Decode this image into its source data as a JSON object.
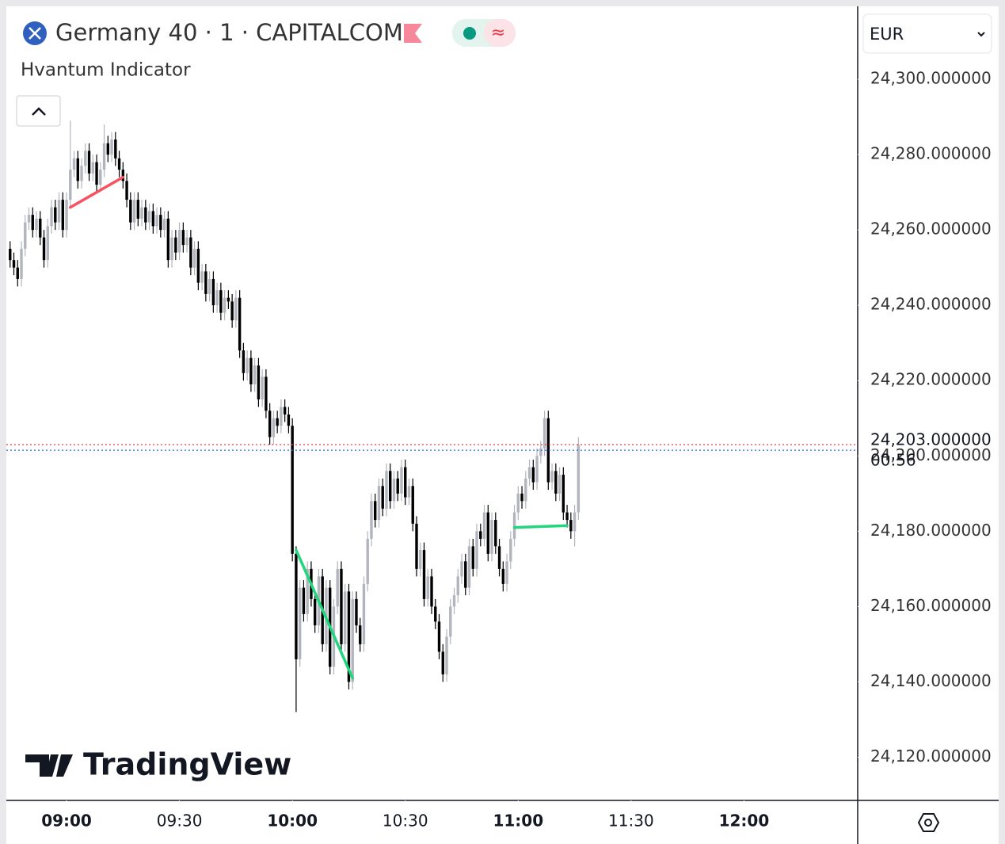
{
  "chart_data": {
    "type": "candlestick",
    "title": "Germany 40 · 1 · CAPITALCOM",
    "indicator": "Hvantum Indicator",
    "currency": "EUR",
    "watermark": "TradingView",
    "up_color": "#b2b5be",
    "down_color": "#000000",
    "x": [
      "08:45",
      "08:46",
      "08:47",
      "08:48",
      "08:49",
      "08:50",
      "08:51",
      "08:52",
      "08:53",
      "08:54",
      "08:55",
      "08:56",
      "08:57",
      "08:58",
      "08:59",
      "09:00",
      "09:01",
      "09:02",
      "09:03",
      "09:04",
      "09:05",
      "09:06",
      "09:07",
      "09:08",
      "09:09",
      "09:10",
      "09:11",
      "09:12",
      "09:13",
      "09:14",
      "09:15",
      "09:16",
      "09:17",
      "09:18",
      "09:19",
      "09:20",
      "09:21",
      "09:22",
      "09:23",
      "09:24",
      "09:25",
      "09:26",
      "09:27",
      "09:28",
      "09:29",
      "09:30",
      "09:31",
      "09:32",
      "09:33",
      "09:34",
      "09:35",
      "09:36",
      "09:37",
      "09:38",
      "09:39",
      "09:40",
      "09:41",
      "09:42",
      "09:43",
      "09:44",
      "09:45",
      "09:46",
      "09:47",
      "09:48",
      "09:49",
      "09:50",
      "09:51",
      "09:52",
      "09:53",
      "09:54",
      "09:55",
      "09:56",
      "09:57",
      "09:58",
      "09:59",
      "10:00",
      "10:01",
      "10:02",
      "10:03",
      "10:04",
      "10:05",
      "10:06",
      "10:07",
      "10:08",
      "10:09",
      "10:10",
      "10:11",
      "10:12",
      "10:13",
      "10:14",
      "10:15",
      "10:16",
      "10:17",
      "10:18",
      "10:19",
      "10:20",
      "10:21",
      "10:22",
      "10:23",
      "10:24",
      "10:25",
      "10:26",
      "10:27",
      "10:28",
      "10:29",
      "10:30",
      "10:31",
      "10:32",
      "10:33",
      "10:34",
      "10:35",
      "10:36",
      "10:37",
      "10:38",
      "10:39",
      "10:40",
      "10:41",
      "10:42",
      "10:43",
      "10:44",
      "10:45",
      "10:46",
      "10:47",
      "10:48",
      "10:49",
      "10:50",
      "10:51",
      "10:52",
      "10:53",
      "10:54",
      "10:55",
      "10:56",
      "10:57",
      "10:58",
      "10:59",
      "11:00",
      "11:01",
      "11:02",
      "11:03",
      "11:04",
      "11:05",
      "11:06",
      "11:07",
      "11:08",
      "11:09",
      "11:10",
      "11:11",
      "11:12",
      "11:13",
      "11:14",
      "11:15",
      "11:16"
    ],
    "open": [
      24255,
      24252,
      24250,
      24247,
      24255,
      24262,
      24264,
      24260,
      24263,
      24258,
      24252,
      24261,
      24266,
      24262,
      24268,
      24260,
      24268,
      24276,
      24279,
      24273,
      24277,
      24281,
      24275,
      24278,
      24272,
      24276,
      24283,
      24280,
      24284,
      24279,
      24276,
      24273,
      24268,
      24262,
      24268,
      24263,
      24266,
      24262,
      24265,
      24261,
      24264,
      24260,
      24263,
      24252,
      24258,
      24254,
      24260,
      24256,
      24258,
      24250,
      24255,
      24246,
      24249,
      24243,
      24247,
      24240,
      24244,
      24238,
      24242,
      24241,
      24236,
      24242,
      24228,
      24222,
      24226,
      24219,
      24224,
      24215,
      24221,
      24212,
      24205,
      24210,
      24208,
      24213,
      24211,
      24208,
      24174,
      24146,
      24165,
      24158,
      24170,
      24162,
      24155,
      24168,
      24150,
      24165,
      24144,
      24160,
      24170,
      24150,
      24164,
      24140,
      24162,
      24155,
      24150,
      24166,
      24178,
      24188,
      24183,
      24192,
      24186,
      24196,
      24188,
      24194,
      24190,
      24197,
      24189,
      24192,
      24182,
      24170,
      24175,
      24162,
      24168,
      24160,
      24156,
      24148,
      24142,
      24152,
      24160,
      24163,
      24168,
      24172,
      24165,
      24176,
      24170,
      24180,
      24178,
      24185,
      24174,
      24183,
      24176,
      24170,
      24166,
      24172,
      24178,
      24185,
      24190,
      24188,
      24194,
      24197,
      24193,
      24200,
      24202,
      24210,
      24193,
      24196,
      24190,
      24195,
      24185,
      24183,
      24180,
      24185
    ],
    "high": [
      24257,
      24254,
      24252,
      24257,
      24264,
      24266,
      24266,
      24265,
      24265,
      24260,
      24263,
      24268,
      24268,
      24270,
      24270,
      24270,
      24289,
      24281,
      24281,
      24279,
      24283,
      24283,
      24280,
      24280,
      24278,
      24288,
      24285,
      24286,
      24286,
      24281,
      24278,
      24275,
      24270,
      24270,
      24270,
      24268,
      24268,
      24267,
      24267,
      24266,
      24266,
      24265,
      24265,
      24260,
      24260,
      24262,
      24262,
      24260,
      24260,
      24257,
      24257,
      24251,
      24251,
      24249,
      24249,
      24246,
      24246,
      24244,
      24244,
      24243,
      24244,
      24244,
      24230,
      24228,
      24228,
      24226,
      24226,
      24223,
      24223,
      24214,
      24212,
      24212,
      24215,
      24215,
      24213,
      24210,
      24176,
      24167,
      24167,
      24172,
      24172,
      24164,
      24170,
      24170,
      24167,
      24167,
      24162,
      24172,
      24172,
      24166,
      24166,
      24164,
      24164,
      24157,
      24168,
      24180,
      24190,
      24190,
      24194,
      24194,
      24198,
      24198,
      24196,
      24196,
      24199,
      24199,
      24194,
      24194,
      24184,
      24177,
      24177,
      24170,
      24170,
      24162,
      24158,
      24150,
      24154,
      24162,
      24165,
      24170,
      24174,
      24174,
      24178,
      24178,
      24182,
      24182,
      24187,
      24187,
      24185,
      24185,
      24178,
      24172,
      24174,
      24180,
      24187,
      24192,
      24192,
      24196,
      24199,
      24199,
      24202,
      24204,
      24212,
      24212,
      24198,
      24198,
      24197,
      24197,
      24187,
      24185,
      24187,
      24205
    ],
    "low": [
      24250,
      24248,
      24245,
      24245,
      24253,
      24260,
      24258,
      24258,
      24256,
      24250,
      24250,
      24259,
      24260,
      24260,
      24258,
      24258,
      24266,
      24274,
      24271,
      24271,
      24275,
      24273,
      24273,
      24270,
      24270,
      24274,
      24278,
      24278,
      24277,
      24274,
      24271,
      24266,
      24260,
      24260,
      24261,
      24261,
      24260,
      24260,
      24259,
      24259,
      24258,
      24258,
      24250,
      24250,
      24252,
      24252,
      24254,
      24254,
      24248,
      24248,
      24244,
      24244,
      24241,
      24241,
      24238,
      24238,
      24236,
      24236,
      24239,
      24234,
      24234,
      24226,
      24220,
      24220,
      24217,
      24217,
      24213,
      24213,
      24210,
      24203,
      24203,
      24206,
      24206,
      24209,
      24206,
      24172,
      24132,
      24144,
      24156,
      24156,
      24160,
      24153,
      24153,
      24148,
      24148,
      24142,
      24142,
      24158,
      24148,
      24148,
      24138,
      24138,
      24153,
      24148,
      24148,
      24164,
      24176,
      24181,
      24181,
      24184,
      24184,
      24186,
      24186,
      24188,
      24188,
      24187,
      24187,
      24180,
      24168,
      24168,
      24160,
      24160,
      24158,
      24154,
      24146,
      24140,
      24140,
      24150,
      24158,
      24161,
      24166,
      24163,
      24163,
      24168,
      24168,
      24176,
      24176,
      24172,
      24172,
      24174,
      24168,
      24164,
      24164,
      24170,
      24176,
      24183,
      24186,
      24186,
      24192,
      24191,
      24191,
      24198,
      24200,
      24191,
      24191,
      24188,
      24188,
      24183,
      24181,
      24178,
      24176,
      24183
    ],
    "close": [
      24252,
      24250,
      24247,
      24255,
      24262,
      24264,
      24260,
      24263,
      24258,
      24252,
      24261,
      24266,
      24262,
      24268,
      24260,
      24268,
      24276,
      24279,
      24273,
      24277,
      24281,
      24275,
      24278,
      24272,
      24276,
      24283,
      24280,
      24284,
      24279,
      24276,
      24273,
      24268,
      24262,
      24268,
      24263,
      24266,
      24262,
      24265,
      24261,
      24264,
      24260,
      24263,
      24252,
      24258,
      24254,
      24260,
      24256,
      24258,
      24250,
      24255,
      24246,
      24249,
      24243,
      24247,
      24240,
      24244,
      24238,
      24242,
      24241,
      24236,
      24242,
      24228,
      24222,
      24226,
      24219,
      24224,
      24215,
      24221,
      24212,
      24205,
      24210,
      24208,
      24213,
      24211,
      24208,
      24174,
      24146,
      24165,
      24158,
      24170,
      24162,
      24155,
      24168,
      24150,
      24165,
      24144,
      24160,
      24170,
      24150,
      24164,
      24140,
      24162,
      24155,
      24150,
      24166,
      24178,
      24188,
      24183,
      24192,
      24186,
      24196,
      24188,
      24194,
      24190,
      24197,
      24189,
      24192,
      24182,
      24170,
      24175,
      24162,
      24168,
      24160,
      24156,
      24148,
      24142,
      24152,
      24160,
      24163,
      24168,
      24172,
      24165,
      24176,
      24170,
      24180,
      24178,
      24185,
      24174,
      24183,
      24176,
      24170,
      24166,
      24172,
      24178,
      24185,
      24190,
      24188,
      24194,
      24197,
      24193,
      24200,
      24202,
      24210,
      24193,
      24196,
      24190,
      24195,
      24185,
      24183,
      24180,
      24185,
      24203
    ],
    "indicator_lines": [
      {
        "color": "#f7525f",
        "x": [
          "09:01",
          "09:15"
        ],
        "y": [
          24266,
          24274
        ]
      },
      {
        "color": "#22d67e",
        "x": [
          "10:01",
          "10:16"
        ],
        "y": [
          24175,
          24141
        ]
      },
      {
        "color": "#22d67e",
        "x": [
          "10:59",
          "11:13"
        ],
        "y": [
          24181,
          24181.5
        ]
      }
    ],
    "last_price": {
      "value": 24203,
      "label": "24,203.000000",
      "color": "#f23645"
    },
    "countdown": "00:56",
    "reference_line": {
      "value": 24201.5,
      "color": "#2962ff"
    },
    "xlim": [
      "08:44",
      "12:30"
    ],
    "xticks": [
      "09:00",
      "09:30",
      "10:00",
      "10:30",
      "11:00",
      "11:30",
      "12:00"
    ],
    "ylim": [
      24110,
      24320
    ],
    "yticks": [
      {
        "value": 24120,
        "label": "24,120.000000"
      },
      {
        "value": 24140,
        "label": "24,140.000000"
      },
      {
        "value": 24160,
        "label": "24,160.000000"
      },
      {
        "value": 24180,
        "label": "24,180.000000"
      },
      {
        "value": 24200,
        "label": "24,200.000000"
      },
      {
        "value": 24220,
        "label": "24,220.000000"
      },
      {
        "value": 24240,
        "label": "24,240.000000"
      },
      {
        "value": 24260,
        "label": "24,260.000000"
      },
      {
        "value": 24280,
        "label": "24,280.000000"
      },
      {
        "value": 24300,
        "label": "24,300.000000"
      }
    ]
  }
}
